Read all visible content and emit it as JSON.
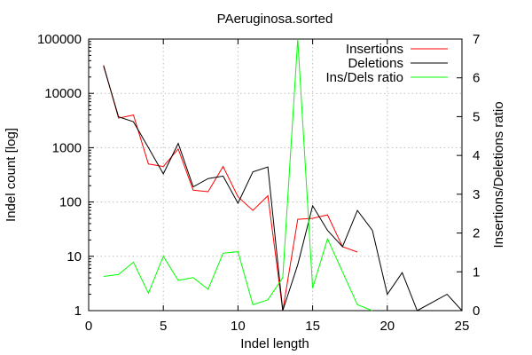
{
  "chart_data": {
    "type": "line",
    "title": "PAeruginosa.sorted",
    "xlabel": "Indel length",
    "ylabel": "Indel count [log]",
    "y2label": "Insertions/Deletions ratio",
    "xlim": [
      0,
      25
    ],
    "ylim": [
      1,
      100000
    ],
    "yscale": "log",
    "y2lim": [
      0,
      7
    ],
    "xticks": [
      0,
      5,
      10,
      15,
      20,
      25
    ],
    "yticks": [
      1,
      10,
      100,
      1000,
      10000,
      100000
    ],
    "y2ticks": [
      0,
      1,
      2,
      3,
      4,
      5,
      6,
      7
    ],
    "grid": true,
    "legend": "top-right",
    "series": [
      {
        "name": "Insertions",
        "color": "#ff0000",
        "axis": "left",
        "x": [
          1,
          2,
          3,
          4,
          5,
          6,
          7,
          8,
          9,
          10,
          11,
          12,
          13,
          14,
          15,
          16,
          17,
          18
        ],
        "y": [
          33000,
          3500,
          4000,
          500,
          450,
          950,
          165,
          155,
          450,
          125,
          70,
          130,
          1,
          48,
          50,
          58,
          15,
          12
        ]
      },
      {
        "name": "Deletions",
        "color": "#000000",
        "axis": "left",
        "x": [
          1,
          2,
          3,
          4,
          5,
          6,
          7,
          8,
          9,
          10,
          11,
          12,
          13,
          14,
          15,
          16,
          17,
          18,
          19,
          20,
          21,
          22,
          24,
          25
        ],
        "y": [
          32000,
          3700,
          3000,
          1000,
          330,
          1200,
          190,
          270,
          300,
          95,
          360,
          440,
          1,
          7,
          85,
          30,
          15,
          70,
          30,
          2,
          5,
          1,
          2,
          1
        ]
      },
      {
        "name": "Ins/Dels ratio",
        "color": "#00ff00",
        "axis": "right",
        "x": [
          1,
          2,
          3,
          4,
          5,
          6,
          7,
          8,
          9,
          10,
          11,
          12,
          13,
          14,
          15,
          16,
          17,
          18,
          19
        ],
        "y": [
          0.88,
          0.93,
          1.25,
          0.45,
          1.4,
          0.78,
          0.85,
          0.55,
          1.48,
          1.52,
          0.15,
          0.28,
          0.85,
          7.0,
          0.58,
          1.85,
          1.0,
          0.15,
          0
        ]
      }
    ]
  }
}
